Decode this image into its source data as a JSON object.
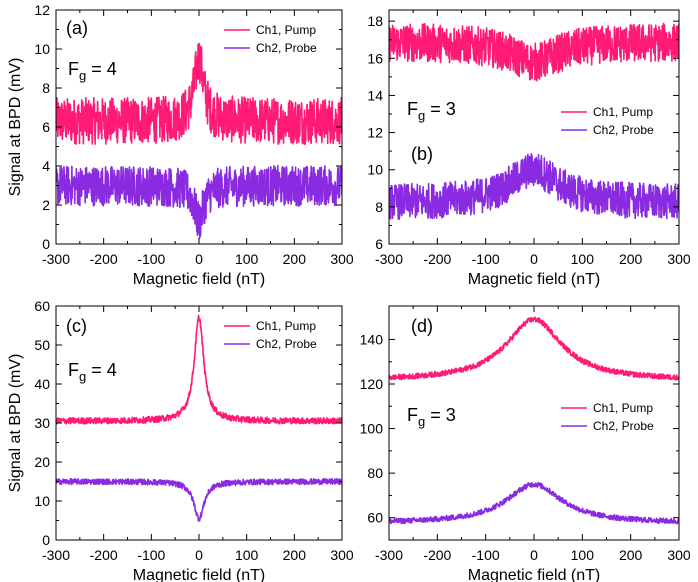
{
  "colors": {
    "pump": "#ff1a75",
    "probe": "#8a2be2",
    "axes": "#000000"
  },
  "chart_data": [
    {
      "type": "line",
      "panel_label": "(a)",
      "fg_text": "F",
      "fg_sub": "g",
      "fg_value": " = 4",
      "xlabel": "Magnetic field (nT)",
      "ylabel": "Signal at BPD (mV)",
      "xlim": [
        -300,
        300
      ],
      "ylim": [
        0,
        12
      ],
      "xticks": [
        -300,
        -200,
        -100,
        0,
        100,
        200,
        300
      ],
      "yticks": [
        0,
        2,
        4,
        6,
        8,
        10,
        12
      ],
      "legend_position": "top-right",
      "series": [
        {
          "name": "Ch1, Pump",
          "color_key": "pump",
          "baseline": 6.3,
          "peak": 3.2,
          "width": 12,
          "noise": 1.5
        },
        {
          "name": "Ch2, Probe",
          "color_key": "probe",
          "baseline": 3.0,
          "peak": -1.8,
          "width": 12,
          "noise": 1.3
        }
      ]
    },
    {
      "type": "line",
      "panel_label": "(b)",
      "fg_text": "F",
      "fg_sub": "g",
      "fg_value": " = 3",
      "xlabel": "Magnetic field (nT)",
      "ylabel": "",
      "xlim": [
        -300,
        300
      ],
      "ylim": [
        6,
        18.6
      ],
      "xticks": [
        -300,
        -200,
        -100,
        0,
        100,
        200,
        300
      ],
      "yticks": [
        6,
        8,
        10,
        12,
        14,
        16,
        18
      ],
      "legend_position": "center-right",
      "series": [
        {
          "name": "Ch1, Pump",
          "color_key": "pump",
          "baseline": 16.9,
          "peak": -1.1,
          "width": 60,
          "noise": 1.3
        },
        {
          "name": "Ch2, Probe",
          "color_key": "probe",
          "baseline": 8.2,
          "peak": 1.8,
          "width": 60,
          "noise": 1.2
        }
      ]
    },
    {
      "type": "line",
      "panel_label": "(c)",
      "fg_text": "F",
      "fg_sub": "g",
      "fg_value": " = 4",
      "xlabel": "Magnetic field (nT)",
      "ylabel": "Signal at BPD (mV)",
      "xlim": [
        -300,
        300
      ],
      "ylim": [
        0,
        60
      ],
      "xticks": [
        -300,
        -200,
        -100,
        0,
        100,
        200,
        300
      ],
      "yticks": [
        0,
        10,
        20,
        30,
        40,
        50,
        60
      ],
      "legend_position": "top-right",
      "series": [
        {
          "name": "Ch1, Pump",
          "color_key": "pump",
          "baseline": 30.5,
          "peak": 26.5,
          "width": 12,
          "noise": 1.0
        },
        {
          "name": "Ch2, Probe",
          "color_key": "probe",
          "baseline": 15.0,
          "peak": -9.5,
          "width": 13,
          "noise": 0.9
        }
      ]
    },
    {
      "type": "line",
      "panel_label": "(d)",
      "fg_text": "F",
      "fg_sub": "g",
      "fg_value": " = 3",
      "xlabel": "Magnetic field (nT)",
      "ylabel": "",
      "xlim": [
        -300,
        300
      ],
      "ylim": [
        50,
        155
      ],
      "xticks": [
        -300,
        -200,
        -100,
        0,
        100,
        200,
        300
      ],
      "yticks": [
        60,
        80,
        100,
        120,
        140
      ],
      "legend_position": "center-right",
      "series": [
        {
          "name": "Ch1, Pump",
          "color_key": "pump",
          "baseline": 121.5,
          "peak": 27.5,
          "width": 70,
          "noise": 1.5
        },
        {
          "name": "Ch2, Probe",
          "color_key": "probe",
          "baseline": 57.5,
          "peak": 17.5,
          "width": 70,
          "noise": 1.5
        }
      ]
    }
  ]
}
